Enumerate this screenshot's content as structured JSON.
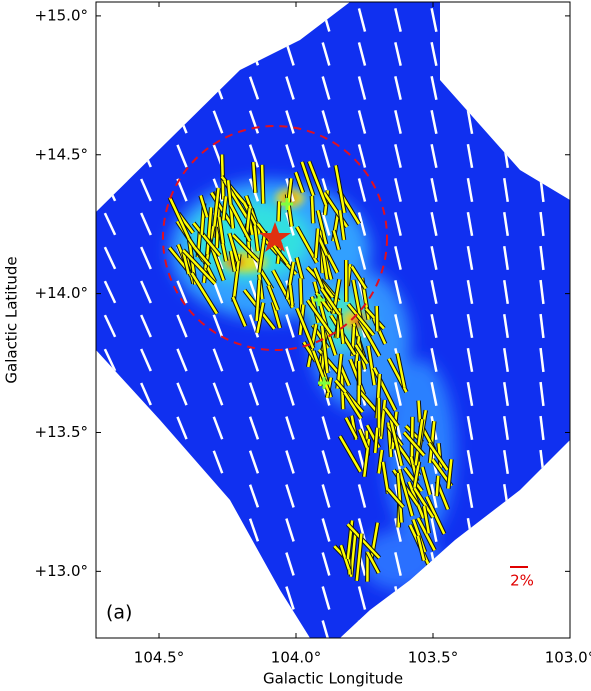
{
  "chart_data": {
    "type": "map",
    "xlabel": "Galactic Longitude",
    "ylabel": "Galactic Latitude",
    "xlim": [
      104.73,
      103.0
    ],
    "ylim": [
      12.76,
      15.05
    ],
    "xticks": [
      {
        "value": 104.5,
        "label": "104.5°"
      },
      {
        "value": 104.0,
        "label": "104.0°"
      },
      {
        "value": 103.5,
        "label": "103.5°"
      },
      {
        "value": 103.0,
        "label": "103.0°"
      }
    ],
    "yticks": [
      {
        "value": 13.0,
        "label": "+13.0°"
      },
      {
        "value": 13.5,
        "label": "+13.5°"
      },
      {
        "value": 14.0,
        "label": "+14.0°"
      },
      {
        "value": 14.5,
        "label": "+14.5°"
      },
      {
        "value": 15.0,
        "label": "+15.0°"
      }
    ],
    "panel_label": "(a)",
    "scale_label": "2%"
  }
}
